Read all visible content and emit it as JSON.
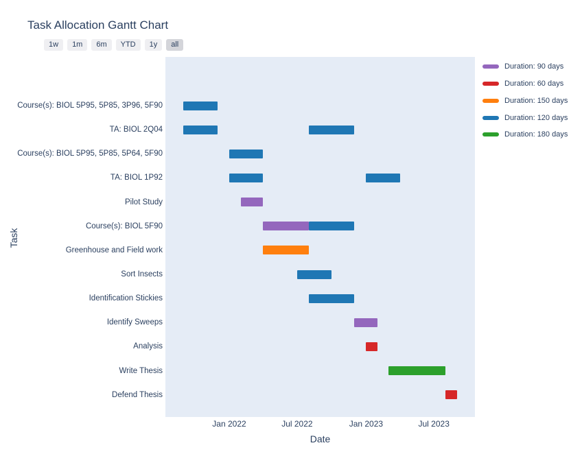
{
  "title": "Task Allocation Gantt Chart",
  "toolbar": {
    "buttons": [
      "1w",
      "1m",
      "6m",
      "YTD",
      "1y",
      "all"
    ],
    "active": "all"
  },
  "legend": {
    "items": [
      {
        "label": "Duration: 90 days",
        "color": "#9467bd"
      },
      {
        "label": "Duration: 60 days",
        "color": "#d62728"
      },
      {
        "label": "Duration: 150 days",
        "color": "#ff7f0e"
      },
      {
        "label": "Duration: 120 days",
        "color": "#1f77b4"
      },
      {
        "label": "Duration: 180 days",
        "color": "#2ca02c"
      }
    ]
  },
  "axes": {
    "x_title": "Date",
    "y_title": "Task",
    "x_ticks": [
      {
        "label": "Jan 2022",
        "date": "2022-01-01"
      },
      {
        "label": "Jul 2022",
        "date": "2022-07-01"
      },
      {
        "label": "Jan 2023",
        "date": "2023-01-01"
      },
      {
        "label": "Jul 2023",
        "date": "2023-07-01"
      }
    ]
  },
  "colors": {
    "plot_background": "#e5ecf6",
    "text": "#2a3f5f",
    "button_inactive": "#efeff2",
    "button_active": "#d4d5da"
  },
  "chart_data": {
    "type": "gantt",
    "title": "Task Allocation Gantt Chart",
    "xlabel": "Date",
    "ylabel": "Task",
    "x_range": [
      "2021-07-15",
      "2023-10-19"
    ],
    "duration_colors": {
      "90": "#9467bd",
      "60": "#d62728",
      "150": "#ff7f0e",
      "120": "#1f77b4",
      "180": "#2ca02c"
    },
    "tasks": [
      {
        "task": "Course(s): BIOL 5P95, 5P85, 3P96, 5F90",
        "bars": [
          {
            "start": "2021-09-01",
            "finish": "2021-12-01",
            "duration": 120
          }
        ]
      },
      {
        "task": "TA: BIOL 2Q04",
        "bars": [
          {
            "start": "2021-09-01",
            "finish": "2021-12-01",
            "duration": 120
          },
          {
            "start": "2022-08-01",
            "finish": "2022-12-01",
            "duration": 120
          }
        ]
      },
      {
        "task": "Course(s): BIOL 5P95, 5P85, 5P64, 5F90",
        "bars": [
          {
            "start": "2022-01-01",
            "finish": "2022-04-01",
            "duration": 120
          }
        ]
      },
      {
        "task": "TA: BIOL 1P92",
        "bars": [
          {
            "start": "2022-01-01",
            "finish": "2022-04-01",
            "duration": 120
          },
          {
            "start": "2023-01-01",
            "finish": "2023-04-01",
            "duration": 120
          }
        ]
      },
      {
        "task": "Pilot Study",
        "bars": [
          {
            "start": "2022-02-01",
            "finish": "2022-04-01",
            "duration": 90
          }
        ]
      },
      {
        "task": "Course(s): BIOL 5F90",
        "bars": [
          {
            "start": "2022-04-01",
            "finish": "2022-08-01",
            "duration": 90
          },
          {
            "start": "2022-08-01",
            "finish": "2022-12-01",
            "duration": 120
          }
        ]
      },
      {
        "task": "Greenhouse and Field work",
        "bars": [
          {
            "start": "2022-04-01",
            "finish": "2022-08-01",
            "duration": 150
          }
        ]
      },
      {
        "task": "Sort Insects",
        "bars": [
          {
            "start": "2022-07-01",
            "finish": "2022-10-01",
            "duration": 120
          }
        ]
      },
      {
        "task": "Identification Stickies",
        "bars": [
          {
            "start": "2022-08-01",
            "finish": "2022-12-01",
            "duration": 120
          }
        ]
      },
      {
        "task": "Identify Sweeps",
        "bars": [
          {
            "start": "2022-12-01",
            "finish": "2023-02-01",
            "duration": 90
          }
        ]
      },
      {
        "task": "Analysis",
        "bars": [
          {
            "start": "2023-01-01",
            "finish": "2023-02-01",
            "duration": 60
          }
        ]
      },
      {
        "task": "Write Thesis",
        "bars": [
          {
            "start": "2023-03-01",
            "finish": "2023-08-01",
            "duration": 180
          }
        ]
      },
      {
        "task": "Defend Thesis",
        "bars": [
          {
            "start": "2023-08-01",
            "finish": "2023-09-01",
            "duration": 60
          }
        ]
      }
    ]
  }
}
